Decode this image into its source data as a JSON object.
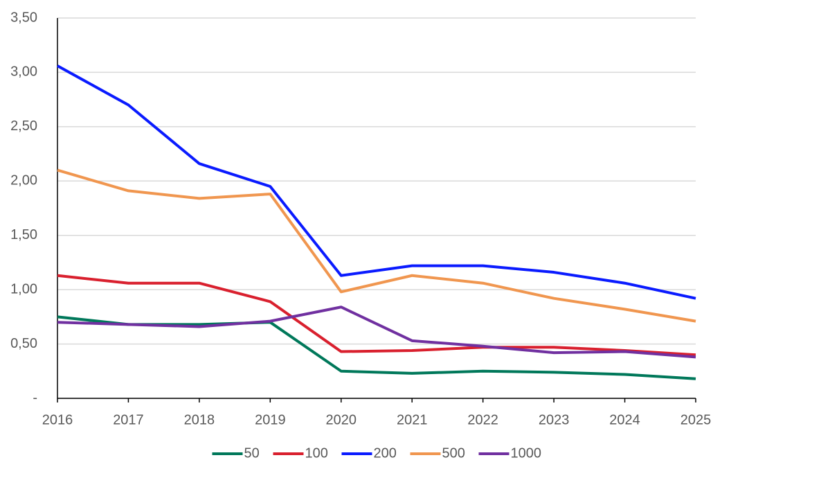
{
  "chart_data": {
    "type": "line",
    "x": [
      2016,
      2017,
      2018,
      2019,
      2020,
      2021,
      2022,
      2023,
      2024,
      2025
    ],
    "xlim": [
      2016,
      2025
    ],
    "xticks": [
      2016,
      2017,
      2018,
      2019,
      2020,
      2021,
      2022,
      2023,
      2024,
      2025
    ],
    "ylim": [
      0,
      3.5
    ],
    "yticks": [
      {
        "value": 0,
        "label": "-"
      },
      {
        "value": 0.5,
        "label": "0,50"
      },
      {
        "value": 1,
        "label": "1,00"
      },
      {
        "value": 1.5,
        "label": "1,50"
      },
      {
        "value": 2,
        "label": "2,00"
      },
      {
        "value": 2.5,
        "label": "2,50"
      },
      {
        "value": 3,
        "label": "3,00"
      },
      {
        "value": 3.5,
        "label": "3,50"
      }
    ],
    "grid": true,
    "legend": "bottom",
    "series": [
      {
        "name": "50",
        "color": "#00785a",
        "values": [
          0.75,
          0.68,
          0.68,
          0.7,
          0.25,
          0.23,
          0.25,
          0.24,
          0.22,
          0.18
        ]
      },
      {
        "name": "100",
        "color": "#d9202e",
        "values": [
          1.13,
          1.06,
          1.06,
          0.89,
          0.43,
          0.44,
          0.47,
          0.47,
          0.44,
          0.4
        ]
      },
      {
        "name": "200",
        "color": "#0a1bff",
        "values": [
          3.06,
          2.7,
          2.16,
          1.95,
          1.13,
          1.22,
          1.22,
          1.16,
          1.06,
          0.92
        ]
      },
      {
        "name": "500",
        "color": "#f0964f",
        "values": [
          2.1,
          1.91,
          1.84,
          1.88,
          0.98,
          1.13,
          1.06,
          0.92,
          0.82,
          0.71
        ]
      },
      {
        "name": "1000",
        "color": "#7030a0",
        "values": [
          0.7,
          0.68,
          0.66,
          0.71,
          0.84,
          0.53,
          0.48,
          0.42,
          0.43,
          0.38
        ]
      }
    ]
  }
}
